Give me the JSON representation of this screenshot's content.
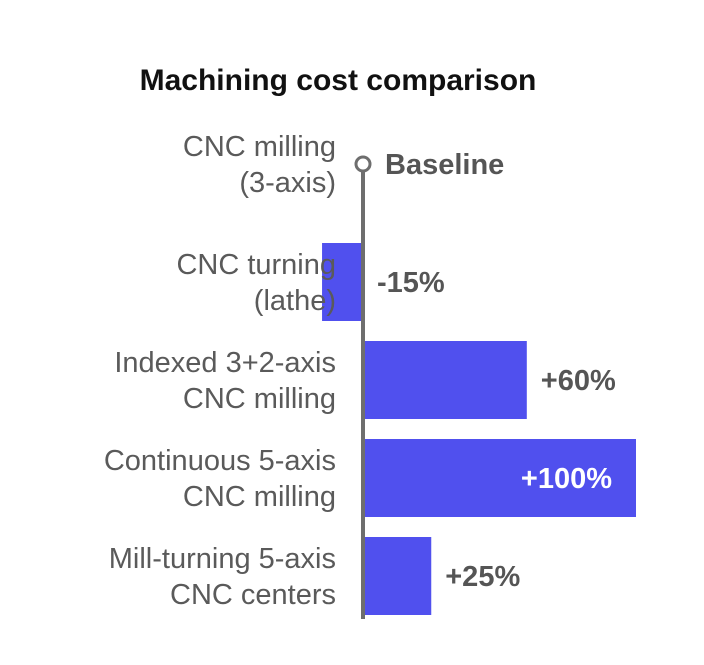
{
  "chart_data": {
    "type": "bar",
    "orientation": "horizontal",
    "title": "Machining cost comparison",
    "baseline_label": "Baseline",
    "categories": [
      [
        "CNC milling",
        "(3-axis)"
      ],
      [
        "CNC turning",
        "(lathe)"
      ],
      [
        "Indexed 3+2-axis",
        "CNC milling"
      ],
      [
        "Continuous 5-axis",
        "CNC milling"
      ],
      [
        "Mill-turning 5-axis",
        "CNC centers"
      ]
    ],
    "values": [
      0,
      -15,
      60,
      100,
      25
    ],
    "value_labels": [
      "",
      "-15%",
      "+60%",
      "+100%",
      "+25%"
    ],
    "unit": "%",
    "bar_color": "#5050ee",
    "axis_color": "#6e6e6e",
    "grid": false,
    "legend": "none"
  }
}
